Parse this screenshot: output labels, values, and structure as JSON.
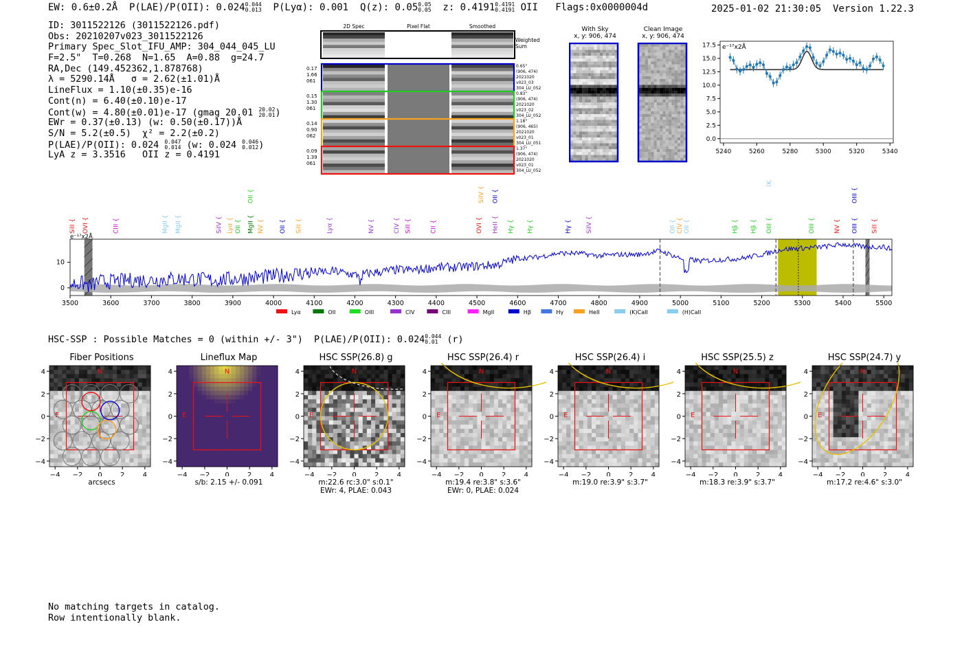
{
  "header": {
    "left": "EW: 0.6±0.2Å  P(LAE)/P(OII): 0.024",
    "plae_sup": "0.044",
    "plae_sub": "0.013",
    "plya": "P(Lyα): 0.001",
    "qz": "Q(z): 0.05",
    "qz_sup": "0.05",
    "qz_sub": "0.05",
    "z": "z: 0.4191",
    "z_sup": "0.4191",
    "z_sub": "0.4191",
    "z_line": "OII",
    "flags": "Flags:0x0000004d",
    "right": "2025-01-02 21:30:05  Version 1.22.3"
  },
  "info": {
    "id": "ID: 3011522126 (3011522126.pdf)",
    "obs": "Obs: 20210207v023_3011522126",
    "primary": "Primary Spec_Slot_IFU_AMP: 304_044_045_LU",
    "fparams": "F=2.5\"  T=0.268  N=1.65  A=0.88  g=24.7",
    "radec": "RA,Dec (149.452362,1.878768)",
    "lambda": "λ = 5290.14Å   σ = 2.62(±1.01)Å",
    "lineflux": "LineFlux = 1.10(±0.35)e-16",
    "contn": "Cont(n) = 6.40(±0.10)e-17",
    "contw": "Cont(w) = 4.80(±0.01)e-17 (gmag 20.01",
    "contw_sup": "20.02",
    "contw_sub": "20.01",
    "ewr": "EWr = 0.37(±0.13) (w: 0.50(±0.17))Å",
    "sn": "S/N = 5.2(±0.5)  χ² = 2.2(±0.2)",
    "plae": "P(LAE)/P(OII): 0.024",
    "plae_sup": "0.047",
    "plae_sub": "0.014",
    "plae_w": "(w: 0.024",
    "plae_w_sup": "0.046",
    "plae_w_sub": "0.012",
    "z": "LyA z = 3.3516   OII z = 0.4191"
  },
  "fibers": {
    "col_titles": [
      "2D Spec",
      "Pixel Flat",
      "Smoothed"
    ],
    "weighted_label": "Weighted Sum",
    "rows": [
      {
        "left": "0.17\n1.66\n061",
        "right": "0.65\"\n(906, 474)\n2021020\nv023_03\n304_LU_052",
        "color": "#0000cc"
      },
      {
        "left": "0.15\n1.30\n061",
        "right": "0.83\"\n(906, 474)\n2021020\nv023_02\n304_LU_052",
        "color": "#22cc22"
      },
      {
        "left": "0.14\n0.90\n062",
        "right": "1.18\"\n(906, 465)\n2021020\nv023_01\n304_LU_051",
        "color": "#ffa020"
      },
      {
        "left": "0.09\n1.39\n061",
        "right": "1.37\"\n(906, 474)\n2021020\nv023_01\n304_LU_052",
        "color": "#ee1111"
      }
    ]
  },
  "sky": {
    "with_sky_title": "With Sky",
    "with_sky_sub": "x, y: 906, 474",
    "clean_title": "Clean Image",
    "clean_sub": "x, y: 906, 474"
  },
  "zoom_chart": {
    "unit_label": "e⁻¹⁷x2Å",
    "x": [
      5244,
      5246,
      5248,
      5250,
      5252,
      5254,
      5256,
      5258,
      5260,
      5262,
      5264,
      5266,
      5268,
      5270,
      5272,
      5274,
      5276,
      5278,
      5280,
      5282,
      5284,
      5286,
      5288,
      5290,
      5292,
      5294,
      5296,
      5298,
      5300,
      5302,
      5304,
      5306,
      5308,
      5310,
      5312,
      5314,
      5316,
      5318,
      5320,
      5322,
      5324,
      5326,
      5328,
      5330,
      5332,
      5334,
      5336
    ],
    "y": [
      15.2,
      14.6,
      13.0,
      12.6,
      12.9,
      13.5,
      13.8,
      13.3,
      13.9,
      14.2,
      13.8,
      12.2,
      11.6,
      10.4,
      10.6,
      11.8,
      12.9,
      13.4,
      13.2,
      13.8,
      14.2,
      15.3,
      16.4,
      17.2,
      17.0,
      15.2,
      14.1,
      13.6,
      14.4,
      15.6,
      16.6,
      16.3,
      15.8,
      16.0,
      15.6,
      14.8,
      15.0,
      14.5,
      13.8,
      14.2,
      13.1,
      12.9,
      13.6,
      14.9,
      15.3,
      14.7,
      13.6
    ],
    "xlim": [
      5238,
      5342
    ],
    "ylim": [
      -0.8,
      18.2
    ],
    "xticks": [
      5240,
      5260,
      5280,
      5300,
      5320,
      5340
    ],
    "yticks": [
      0.0,
      2.5,
      5.0,
      7.5,
      10.0,
      12.5,
      15.0,
      17.5
    ],
    "fit_base": 12.9,
    "fit_amp": 3.4,
    "fit_center": 5290.1,
    "fit_sigma": 2.8
  },
  "full_spectrum": {
    "unit_label": "e⁻¹⁷x2Å",
    "xlim": [
      3500,
      5520
    ],
    "ylim": [
      -3,
      19
    ],
    "xticks": [
      3500,
      3600,
      3700,
      3800,
      3900,
      4000,
      4100,
      4200,
      4300,
      4400,
      4500,
      4600,
      4700,
      4800,
      4900,
      5000,
      5100,
      5200,
      5300,
      5400,
      5500
    ],
    "yticks": [
      0,
      10
    ],
    "x": [
      3500,
      3530,
      3550,
      3570,
      3600,
      3650,
      3700,
      3750,
      3800,
      3850,
      3900,
      3950,
      4000,
      4050,
      4100,
      4150,
      4200,
      4250,
      4300,
      4350,
      4400,
      4450,
      4500,
      4550,
      4600,
      4650,
      4700,
      4750,
      4800,
      4850,
      4900,
      4950,
      5000,
      5050,
      5100,
      5150,
      5200,
      5250,
      5300,
      5350,
      5400,
      5450,
      5500,
      5520
    ],
    "y": [
      1.5,
      1.8,
      0.5,
      2.5,
      2.5,
      3.0,
      3.0,
      3.5,
      3.5,
      3.0,
      3.5,
      4.0,
      4.5,
      5.5,
      6.0,
      6.5,
      5.0,
      6.0,
      7.0,
      7.0,
      8.0,
      8.0,
      8.5,
      9.0,
      11.5,
      12.0,
      13.5,
      13.5,
      12.5,
      13.0,
      13.0,
      14.5,
      11.5,
      10.5,
      11.0,
      11.5,
      13.0,
      15.0,
      15.5,
      16.0,
      17.0,
      16.0,
      16.0,
      15.0
    ],
    "shaded": {
      "from": 5240,
      "to": 5335,
      "color": "#bdbd00"
    },
    "dashed_lines": [
      4950,
      5235,
      5425
    ],
    "center_line": 5290,
    "hatched": [
      [
        3535,
        3555
      ],
      [
        5455,
        5465
      ]
    ],
    "gap": [
      4132,
      4140
    ],
    "lines": [
      {
        "w": 3505,
        "n": "SiII",
        "c": "#ee1111",
        "row": 0
      },
      {
        "w": 3537,
        "n": "OVI",
        "c": "#ee1111",
        "row": 0
      },
      {
        "w": 3612,
        "n": "CIII",
        "c": "#cc00cc",
        "row": 0
      },
      {
        "w": 3733,
        "n": "MgII",
        "c": "#88ccee",
        "row": 0
      },
      {
        "w": 3765,
        "n": "MgII",
        "c": "#88ccee",
        "row": 0
      },
      {
        "w": 3866,
        "n": "SiIV",
        "c": "#9933cc",
        "row": 0
      },
      {
        "w": 3893,
        "n": "Lyα",
        "c": "#ffa020",
        "row": 0
      },
      {
        "w": 3912,
        "n": "OII",
        "c": "#22bb22",
        "row": 0
      },
      {
        "w": 3943,
        "n": "MgII",
        "c": "#007700",
        "row": 0
      },
      {
        "w": 3943,
        "n": "OII",
        "c": "#22cc22",
        "row": 2
      },
      {
        "w": 3968,
        "n": "NV",
        "c": "#ffa020",
        "row": 0
      },
      {
        "w": 4022,
        "n": "OII",
        "c": "#0000cc",
        "row": 0
      },
      {
        "w": 4062,
        "n": "SiII",
        "c": "#ffa020",
        "row": 0
      },
      {
        "w": 4138,
        "n": "Lyα",
        "c": "#9933cc",
        "row": 0
      },
      {
        "w": 4240,
        "n": "NV",
        "c": "#9933cc",
        "row": 0
      },
      {
        "w": 4302,
        "n": "CIV",
        "c": "#9933cc",
        "row": 0
      },
      {
        "w": 4330,
        "n": "SiII",
        "c": "#cc00cc",
        "row": 0
      },
      {
        "w": 4393,
        "n": "CII",
        "c": "#cc00cc",
        "row": 0
      },
      {
        "w": 4505,
        "n": "OVI",
        "c": "#ee1111",
        "row": 0
      },
      {
        "w": 4510,
        "n": "SiIV",
        "c": "#ffa020",
        "row": 2
      },
      {
        "w": 4545,
        "n": "HeII",
        "c": "#9933cc",
        "row": 0
      },
      {
        "w": 4545,
        "n": "OII",
        "c": "#0000cc",
        "row": 2
      },
      {
        "w": 4583,
        "n": "Hγ",
        "c": "#22cc22",
        "row": 0
      },
      {
        "w": 4630,
        "n": "Hγ",
        "c": "#22cc22",
        "row": 0
      },
      {
        "w": 4724,
        "n": "Hγ",
        "c": "#0000cc",
        "row": 0
      },
      {
        "w": 4775,
        "n": "SiIV",
        "c": "#9933cc",
        "row": 0
      },
      {
        "w": 4980,
        "n": "OII",
        "c": "#88ccee",
        "row": 0
      },
      {
        "w": 4998,
        "n": "CIV",
        "c": "#ffa020",
        "row": 0
      },
      {
        "w": 5015,
        "n": "OII",
        "c": "#88ccee",
        "row": 0
      },
      {
        "w": 5134,
        "n": "Hβ",
        "c": "#22cc22",
        "row": 0
      },
      {
        "w": 5180,
        "n": "Hβ",
        "c": "#22cc22",
        "row": 0
      },
      {
        "w": 5218,
        "n": "OIII",
        "c": "#22cc22",
        "row": 0
      },
      {
        "w": 5218,
        "n": "(K)CaII",
        "c": "#88ccee",
        "row": 3
      },
      {
        "w": 5322,
        "n": "OIII",
        "c": "#22cc22",
        "row": 0
      },
      {
        "w": 5385,
        "n": "NV",
        "c": "#ee1111",
        "row": 0
      },
      {
        "w": 5428,
        "n": "OIII",
        "c": "#0000cc",
        "row": 0
      },
      {
        "w": 5428,
        "n": "OIII",
        "c": "#0000cc",
        "row": 2
      },
      {
        "w": 5477,
        "n": "SiII",
        "c": "#ee1111",
        "row": 0
      }
    ],
    "legend": [
      {
        "n": "Lyα",
        "c": "#ee1111"
      },
      {
        "n": "OII",
        "c": "#007700"
      },
      {
        "n": "OIII",
        "c": "#22dd22"
      },
      {
        "n": "CIV",
        "c": "#9933cc"
      },
      {
        "n": "CIII",
        "c": "#770077"
      },
      {
        "n": "MgII",
        "c": "#ff22ff"
      },
      {
        "n": "Hβ",
        "c": "#0000cc"
      },
      {
        "n": "Hγ",
        "c": "#4477dd"
      },
      {
        "n": "HeII",
        "c": "#ffa020"
      },
      {
        "n": "(K)CaII",
        "c": "#88ccee"
      },
      {
        "n": "(H)CaII",
        "c": "#88ccee"
      }
    ]
  },
  "matches": {
    "text": "HSC-SSP : Possible Matches = 0 (within +/- 3\")  P(LAE)/P(OII): 0.024",
    "sup": "0.044",
    "sub": "0.01",
    "suffix": " (r)"
  },
  "cutouts": [
    {
      "title": "Fiber Positions",
      "caption": "arcsecs",
      "caption2": ""
    },
    {
      "title": "Lineflux Map",
      "caption": "s/b: 2.15 +/- 0.091",
      "caption2": ""
    },
    {
      "title": "HSC SSP(26.8) g",
      "caption": "m:22.6 rc:3.0\"  s:0.1\"",
      "caption2": "EWr: 4, PLAE: 0.043"
    },
    {
      "title": "HSC SSP(26.4) r",
      "caption": "m:19.4  re:3.8\"  s:3.6\"",
      "caption2": "EWr: 0, PLAE: 0.024"
    },
    {
      "title": "HSC SSP(26.4) i",
      "caption": "m:19.0  re:3.9\"  s:3.7\"",
      "caption2": ""
    },
    {
      "title": "HSC SSP(25.5) z",
      "caption": "m:18.3  re:3.9\"  s:3.7\"",
      "caption2": ""
    },
    {
      "title": "HSC SSP(24.7) y",
      "caption": "m:17.2  re:4.6\"  s:3.0\"",
      "caption2": ""
    }
  ],
  "cutout_axes": {
    "ticks": [
      -4,
      -2,
      0,
      2,
      4
    ],
    "north": "N",
    "east": "E"
  },
  "footer": {
    "line1": "No matching targets in catalog.",
    "line2": "Row intentionally blank."
  }
}
